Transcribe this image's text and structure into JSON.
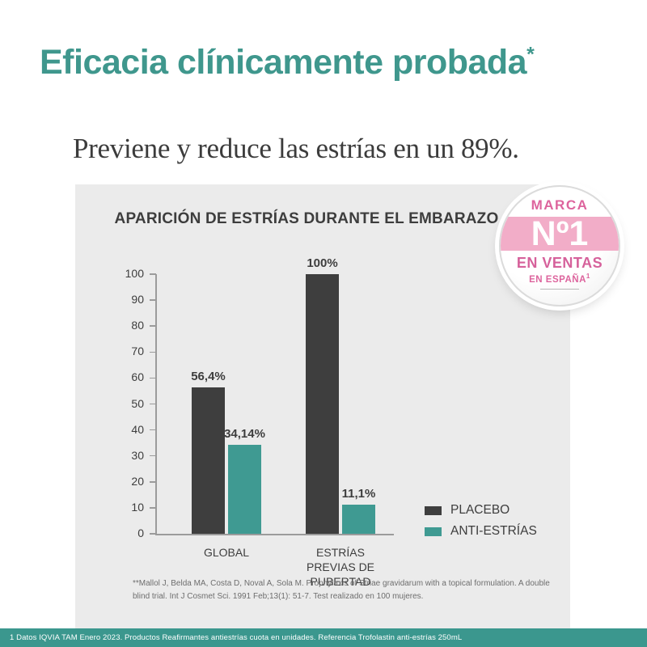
{
  "header": {
    "title": "Eficacia clínicamente probada",
    "title_mark": "*",
    "subtitle": "Previene y reduce las estrías en un 89%."
  },
  "badge": {
    "top_label": "MARCA",
    "rank": "Nº1",
    "middle_label": "EN VENTAS",
    "bottom_label": "EN ESPAÑA",
    "bottom_sup": "1",
    "band_color": "#F2ADC8",
    "text_color": "#DD649D"
  },
  "chart_data": {
    "type": "bar",
    "title": "APARICIÓN DE ESTRÍAS DURANTE EL EMBARAZO",
    "categories": [
      "GLOBAL",
      "ESTRÍAS PREVIAS DE PUBERTAD"
    ],
    "series": [
      {
        "name": "PLACEBO",
        "color": "#3E3E3E",
        "values": [
          56.4,
          100
        ],
        "labels": [
          "56,4%",
          "100%"
        ]
      },
      {
        "name": "ANTI-ESTRÍAS",
        "color": "#3F9A92",
        "values": [
          34.14,
          11.1
        ],
        "labels": [
          "34,14%",
          "11,1%"
        ]
      }
    ],
    "ylabel": "",
    "xlabel": "",
    "ylim": [
      0,
      100
    ],
    "yticks": [
      0,
      10,
      20,
      30,
      40,
      50,
      60,
      70,
      80,
      90,
      100
    ],
    "grid": false,
    "legend_position": "bottom-right"
  },
  "footnote": "**Mallol J, Belda MA, Costa D, Noval A, Sola M. Prophylaxis of Striae gravidarum with a topical formulation. A double blind trial. Int J Cosmet Sci. 1991 Feb;13(1): 51-7. Test realizado en 100 mujeres.",
  "footer": {
    "text": "1 Datos IQVIA TAM Enero 2023. Productos Reafirmantes antiestrías cuota en unidades. Referencia Trofolastin anti-estrías 250mL",
    "bg_color": "#3B978E"
  },
  "colors": {
    "accent_teal": "#3F978D",
    "panel_bg": "#EBEBEB",
    "text_dark": "#3D3D3D",
    "axis_gray": "#9B9B9B",
    "footnote_gray": "#6E6E6E"
  }
}
